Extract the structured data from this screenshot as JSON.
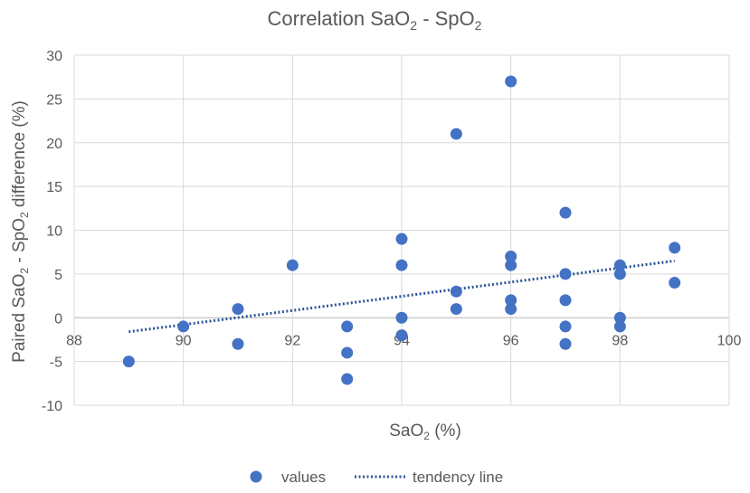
{
  "chart_data": {
    "type": "scatter",
    "title": {
      "base": "Correlation SaO",
      "sub1": "2",
      "mid": " - SpO",
      "sub2": "2"
    },
    "xlabel": {
      "base": "SaO",
      "sub": "2",
      "tail": " (%)"
    },
    "ylabel": {
      "pre": "Paired SaO",
      "sub1": "2",
      "mid": " - SpO",
      "sub2": "2",
      "tail": " difference (%)"
    },
    "xlim": [
      88,
      100
    ],
    "ylim": [
      -10,
      30
    ],
    "xticks": [
      88,
      90,
      92,
      94,
      96,
      98,
      100
    ],
    "yticks": [
      -10,
      -5,
      0,
      5,
      10,
      15,
      20,
      25,
      30
    ],
    "grid": true,
    "legend_position": "bottom",
    "series": [
      {
        "name": "values",
        "color": "#4472C4",
        "points": [
          [
            89,
            -5
          ],
          [
            90,
            -1
          ],
          [
            91,
            1
          ],
          [
            91,
            -3
          ],
          [
            92,
            6
          ],
          [
            93,
            -1
          ],
          [
            93,
            -4
          ],
          [
            93,
            -7
          ],
          [
            94,
            9
          ],
          [
            94,
            6
          ],
          [
            94,
            0
          ],
          [
            94,
            -2
          ],
          [
            95,
            21
          ],
          [
            95,
            3
          ],
          [
            95,
            1
          ],
          [
            96,
            27
          ],
          [
            96,
            7
          ],
          [
            96,
            6
          ],
          [
            96,
            2
          ],
          [
            96,
            1
          ],
          [
            97,
            12
          ],
          [
            97,
            5
          ],
          [
            97,
            2
          ],
          [
            97,
            -1
          ],
          [
            97,
            -3
          ],
          [
            98,
            6
          ],
          [
            98,
            5
          ],
          [
            98,
            0
          ],
          [
            98,
            -1
          ],
          [
            99,
            8
          ],
          [
            99,
            4
          ]
        ]
      },
      {
        "name": "tendency line",
        "type": "trend",
        "color": "#2F5597",
        "x": [
          89,
          99
        ],
        "y": [
          -1.6,
          6.5
        ]
      }
    ]
  }
}
